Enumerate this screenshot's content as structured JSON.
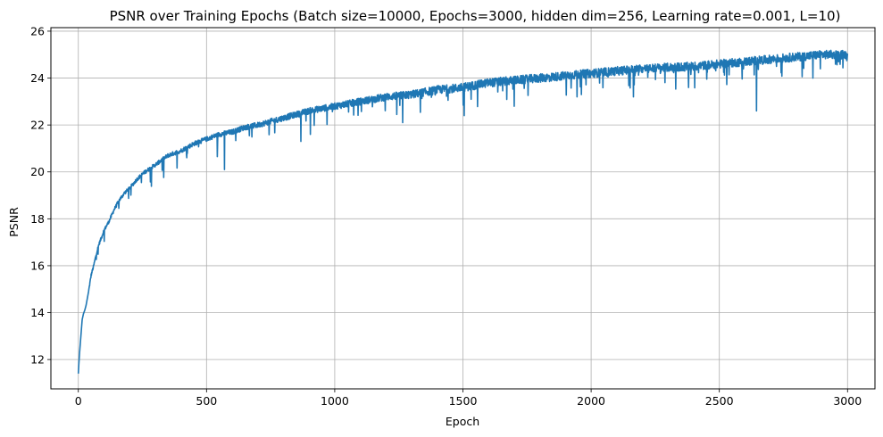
{
  "chart_data": {
    "type": "line",
    "title": "PSNR over Training Epochs (Batch size=10000, Epochs=3000, hidden dim=256, Learning rate=0.001, L=10)",
    "xlabel": "Epoch",
    "ylabel": "PSNR",
    "xlim": [
      -107,
      3107
    ],
    "ylim": [
      10.75,
      26.15
    ],
    "x_ticks": [
      0,
      500,
      1000,
      1500,
      2000,
      2500,
      3000
    ],
    "y_ticks": [
      12,
      14,
      16,
      18,
      20,
      22,
      24,
      26
    ],
    "grid": true,
    "line_color": "#1f77b4",
    "series": [
      {
        "x": [
          0,
          2,
          5,
          10,
          15,
          20,
          25,
          30,
          40,
          50,
          60,
          70,
          80,
          90,
          100,
          120,
          140,
          160,
          180,
          200,
          230,
          260,
          300,
          350,
          400,
          450,
          500,
          550,
          600,
          650,
          700,
          800,
          900,
          1000,
          1100,
          1200,
          1300,
          1400,
          1500,
          1600,
          1700,
          1800,
          1900,
          2000,
          2100,
          2200,
          2300,
          2400,
          2500,
          2600,
          2700,
          2800,
          2900,
          3000
        ],
        "y": [
          11.4,
          11.8,
          12.3,
          13.0,
          13.7,
          13.95,
          14.1,
          14.3,
          14.9,
          15.6,
          16.0,
          16.5,
          16.9,
          17.2,
          17.5,
          17.9,
          18.4,
          18.8,
          19.1,
          19.3,
          19.7,
          20.0,
          20.3,
          20.7,
          20.9,
          21.2,
          21.4,
          21.6,
          21.7,
          21.9,
          22.0,
          22.3,
          22.6,
          22.8,
          23.0,
          23.2,
          23.3,
          23.5,
          23.6,
          23.8,
          23.9,
          24.0,
          24.1,
          24.2,
          24.3,
          24.4,
          24.45,
          24.5,
          24.6,
          24.7,
          24.8,
          24.9,
          25.0,
          25.0
        ],
        "dips": [
          {
            "x": 570,
            "y": 20.1
          },
          {
            "x": 868,
            "y": 21.3
          },
          {
            "x": 905,
            "y": 21.6
          },
          {
            "x": 1265,
            "y": 22.1
          },
          {
            "x": 1505,
            "y": 22.4
          },
          {
            "x": 1700,
            "y": 22.8
          },
          {
            "x": 1700,
            "y": 22.8
          },
          {
            "x": 1945,
            "y": 23.2
          },
          {
            "x": 2165,
            "y": 23.2
          },
          {
            "x": 2380,
            "y": 23.6
          },
          {
            "x": 2645,
            "y": 22.6
          },
          {
            "x": 2865,
            "y": 24.0
          }
        ]
      }
    ]
  }
}
